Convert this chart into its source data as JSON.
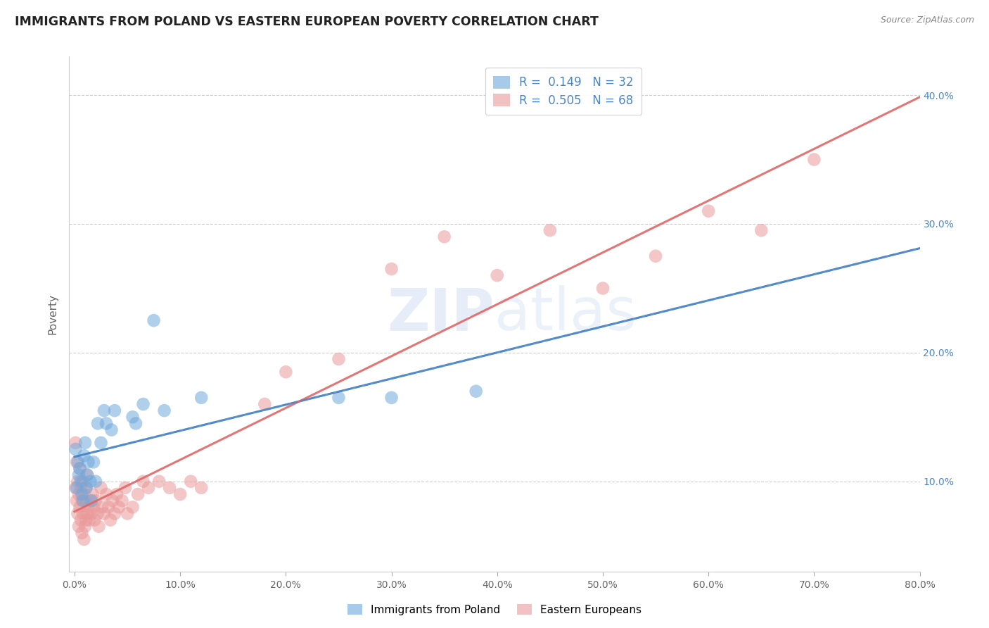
{
  "title": "IMMIGRANTS FROM POLAND VS EASTERN EUROPEAN POVERTY CORRELATION CHART",
  "source": "Source: ZipAtlas.com",
  "ylabel": "Poverty",
  "xlabel_blue": "Immigrants from Poland",
  "xlabel_pink": "Eastern Europeans",
  "xlim": [
    -0.005,
    0.8
  ],
  "ylim": [
    0.03,
    0.43
  ],
  "xticks": [
    0.0,
    0.1,
    0.2,
    0.3,
    0.4,
    0.5,
    0.6,
    0.7,
    0.8
  ],
  "yticks": [
    0.1,
    0.2,
    0.3,
    0.4
  ],
  "R_blue": 0.149,
  "N_blue": 32,
  "R_pink": 0.505,
  "N_pink": 68,
  "blue_color": "#6fa8dc",
  "pink_color": "#ea9999",
  "blue_line_color": "#4a86c8",
  "pink_line_color": "#e06666",
  "watermark": "ZIPatlas",
  "watermark_color": "#d0e4f7",
  "background_color": "#ffffff",
  "blue_scatter_x": [
    0.001,
    0.002,
    0.003,
    0.004,
    0.005,
    0.006,
    0.007,
    0.008,
    0.009,
    0.01,
    0.011,
    0.012,
    0.013,
    0.015,
    0.016,
    0.018,
    0.02,
    0.022,
    0.025,
    0.028,
    0.03,
    0.035,
    0.038,
    0.055,
    0.058,
    0.065,
    0.075,
    0.085,
    0.12,
    0.25,
    0.3,
    0.38
  ],
  "blue_scatter_y": [
    0.125,
    0.095,
    0.115,
    0.105,
    0.11,
    0.1,
    0.09,
    0.085,
    0.12,
    0.13,
    0.095,
    0.105,
    0.115,
    0.1,
    0.085,
    0.115,
    0.1,
    0.145,
    0.13,
    0.155,
    0.145,
    0.14,
    0.155,
    0.15,
    0.145,
    0.16,
    0.225,
    0.155,
    0.165,
    0.165,
    0.165,
    0.17
  ],
  "pink_scatter_x": [
    0.001,
    0.001,
    0.002,
    0.002,
    0.003,
    0.003,
    0.004,
    0.004,
    0.005,
    0.005,
    0.006,
    0.006,
    0.007,
    0.007,
    0.008,
    0.008,
    0.009,
    0.009,
    0.01,
    0.01,
    0.011,
    0.011,
    0.012,
    0.012,
    0.013,
    0.014,
    0.015,
    0.016,
    0.017,
    0.018,
    0.019,
    0.02,
    0.022,
    0.023,
    0.025,
    0.026,
    0.028,
    0.03,
    0.032,
    0.034,
    0.036,
    0.038,
    0.04,
    0.042,
    0.045,
    0.048,
    0.05,
    0.055,
    0.06,
    0.065,
    0.07,
    0.08,
    0.09,
    0.1,
    0.11,
    0.12,
    0.18,
    0.2,
    0.25,
    0.3,
    0.35,
    0.4,
    0.45,
    0.5,
    0.55,
    0.6,
    0.65,
    0.7
  ],
  "pink_scatter_y": [
    0.13,
    0.095,
    0.115,
    0.085,
    0.1,
    0.075,
    0.09,
    0.065,
    0.11,
    0.08,
    0.095,
    0.07,
    0.085,
    0.06,
    0.1,
    0.075,
    0.09,
    0.055,
    0.085,
    0.065,
    0.095,
    0.07,
    0.105,
    0.075,
    0.08,
    0.07,
    0.085,
    0.075,
    0.09,
    0.08,
    0.07,
    0.085,
    0.075,
    0.065,
    0.095,
    0.08,
    0.075,
    0.09,
    0.08,
    0.07,
    0.085,
    0.075,
    0.09,
    0.08,
    0.085,
    0.095,
    0.075,
    0.08,
    0.09,
    0.1,
    0.095,
    0.1,
    0.095,
    0.09,
    0.1,
    0.095,
    0.16,
    0.185,
    0.195,
    0.265,
    0.29,
    0.26,
    0.295,
    0.25,
    0.275,
    0.31,
    0.295,
    0.35
  ]
}
